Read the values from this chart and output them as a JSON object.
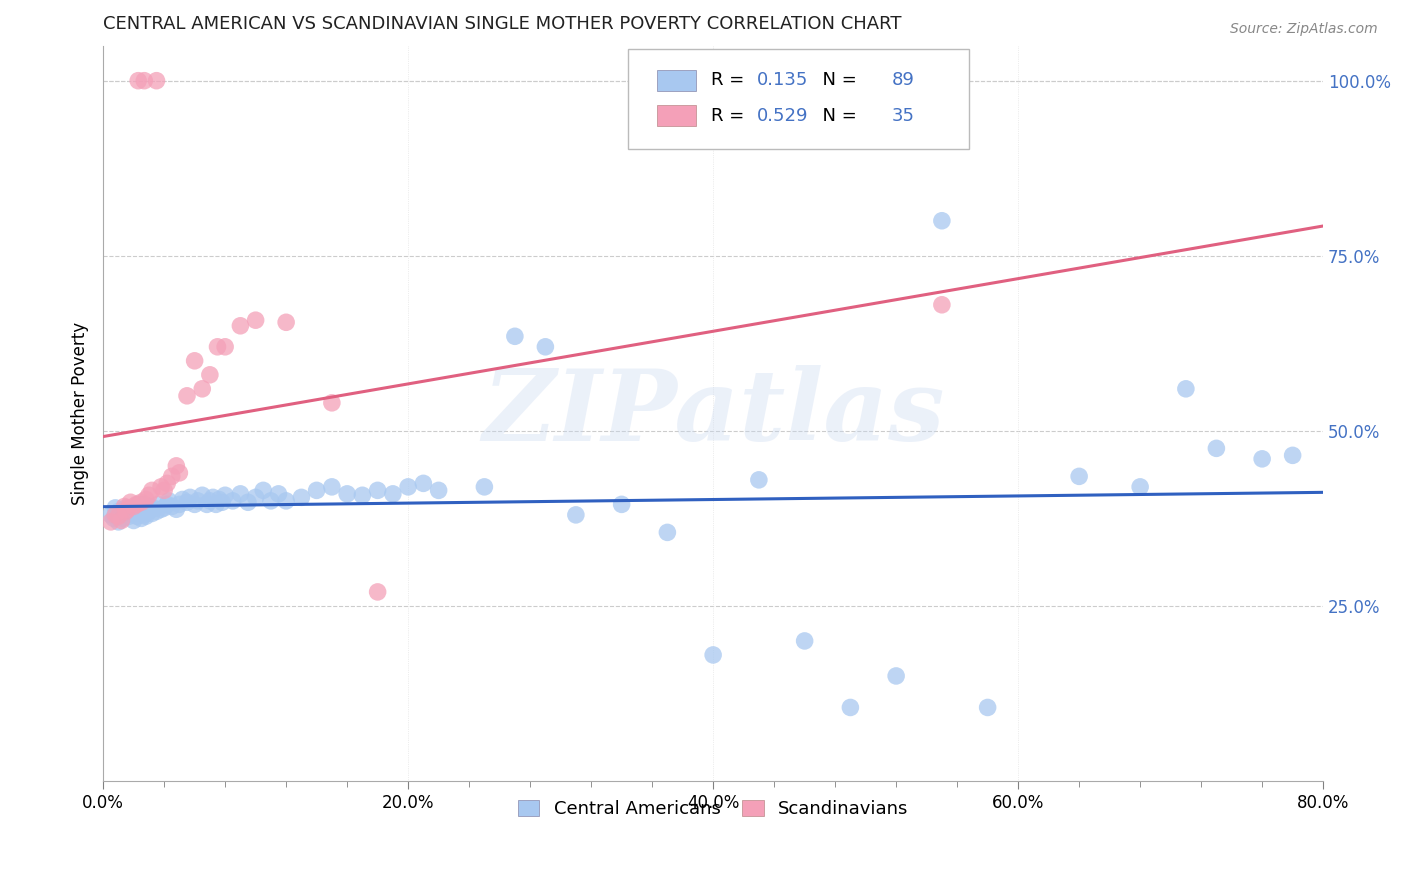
{
  "title": "CENTRAL AMERICAN VS SCANDINAVIAN SINGLE MOTHER POVERTY CORRELATION CHART",
  "source": "Source: ZipAtlas.com",
  "ylabel": "Single Mother Poverty",
  "xlim": [
    0.0,
    0.8
  ],
  "ylim": [
    0.0,
    1.05
  ],
  "xtick_labels": [
    "0.0%",
    "",
    "",
    "",
    "",
    "20.0%",
    "",
    "",
    "",
    "",
    "40.0%",
    "",
    "",
    "",
    "",
    "60.0%",
    "",
    "",
    "",
    "",
    "80.0%"
  ],
  "xtick_vals": [
    0.0,
    0.04,
    0.08,
    0.12,
    0.16,
    0.2,
    0.24,
    0.28,
    0.32,
    0.36,
    0.4,
    0.44,
    0.48,
    0.52,
    0.56,
    0.6,
    0.64,
    0.68,
    0.72,
    0.76,
    0.8
  ],
  "xtick_major_labels": [
    "0.0%",
    "20.0%",
    "40.0%",
    "60.0%",
    "80.0%"
  ],
  "xtick_major_vals": [
    0.0,
    0.2,
    0.4,
    0.6,
    0.8
  ],
  "ytick_labels": [
    "25.0%",
    "50.0%",
    "75.0%",
    "100.0%"
  ],
  "ytick_vals": [
    0.25,
    0.5,
    0.75,
    1.0
  ],
  "watermark": "ZIPatlas",
  "ca_R": 0.135,
  "ca_N": 89,
  "sc_R": 0.529,
  "sc_N": 35,
  "ca_color": "#A8C8F0",
  "sc_color": "#F4A0B8",
  "ca_line_color": "#3060C0",
  "sc_line_color": "#E06080",
  "legend_label_ca": "Central Americans",
  "legend_label_sc": "Scandinavians",
  "ca_x": [
    0.005,
    0.007,
    0.008,
    0.01,
    0.01,
    0.012,
    0.013,
    0.015,
    0.015,
    0.017,
    0.018,
    0.018,
    0.02,
    0.02,
    0.021,
    0.022,
    0.023,
    0.023,
    0.024,
    0.025,
    0.025,
    0.026,
    0.027,
    0.027,
    0.028,
    0.028,
    0.03,
    0.03,
    0.032,
    0.033,
    0.035,
    0.036,
    0.038,
    0.04,
    0.042,
    0.043,
    0.045,
    0.048,
    0.05,
    0.052,
    0.055,
    0.057,
    0.06,
    0.062,
    0.065,
    0.068,
    0.07,
    0.072,
    0.074,
    0.076,
    0.078,
    0.08,
    0.085,
    0.09,
    0.095,
    0.1,
    0.105,
    0.11,
    0.115,
    0.12,
    0.13,
    0.14,
    0.15,
    0.16,
    0.17,
    0.18,
    0.19,
    0.2,
    0.21,
    0.22,
    0.25,
    0.27,
    0.29,
    0.31,
    0.34,
    0.37,
    0.4,
    0.43,
    0.46,
    0.49,
    0.52,
    0.55,
    0.58,
    0.64,
    0.68,
    0.71,
    0.73,
    0.76,
    0.78
  ],
  "ca_y": [
    0.38,
    0.375,
    0.39,
    0.37,
    0.385,
    0.38,
    0.375,
    0.39,
    0.383,
    0.378,
    0.382,
    0.388,
    0.372,
    0.385,
    0.39,
    0.378,
    0.382,
    0.395,
    0.388,
    0.375,
    0.392,
    0.385,
    0.38,
    0.395,
    0.378,
    0.388,
    0.385,
    0.392,
    0.382,
    0.39,
    0.385,
    0.395,
    0.388,
    0.39,
    0.395,
    0.4,
    0.392,
    0.388,
    0.395,
    0.402,
    0.398,
    0.405,
    0.395,
    0.4,
    0.408,
    0.395,
    0.4,
    0.405,
    0.395,
    0.402,
    0.398,
    0.408,
    0.4,
    0.41,
    0.398,
    0.405,
    0.415,
    0.4,
    0.41,
    0.4,
    0.405,
    0.415,
    0.42,
    0.41,
    0.408,
    0.415,
    0.41,
    0.42,
    0.425,
    0.415,
    0.42,
    0.635,
    0.62,
    0.38,
    0.395,
    0.355,
    0.18,
    0.43,
    0.2,
    0.105,
    0.15,
    0.8,
    0.105,
    0.435,
    0.42,
    0.56,
    0.475,
    0.46,
    0.465
  ],
  "sc_x": [
    0.005,
    0.008,
    0.01,
    0.012,
    0.014,
    0.015,
    0.016,
    0.018,
    0.02,
    0.022,
    0.023,
    0.025,
    0.027,
    0.028,
    0.03,
    0.032,
    0.035,
    0.038,
    0.04,
    0.042,
    0.045,
    0.048,
    0.05,
    0.055,
    0.06,
    0.065,
    0.07,
    0.075,
    0.08,
    0.09,
    0.1,
    0.12,
    0.15,
    0.18,
    0.55
  ],
  "sc_y": [
    0.37,
    0.38,
    0.378,
    0.372,
    0.392,
    0.385,
    0.388,
    0.398,
    0.392,
    0.395,
    1.0,
    0.398,
    1.0,
    0.402,
    0.408,
    0.415,
    1.0,
    0.42,
    0.415,
    0.425,
    0.435,
    0.45,
    0.44,
    0.55,
    0.6,
    0.56,
    0.58,
    0.62,
    0.62,
    0.65,
    0.658,
    0.655,
    0.54,
    0.27,
    0.68
  ]
}
